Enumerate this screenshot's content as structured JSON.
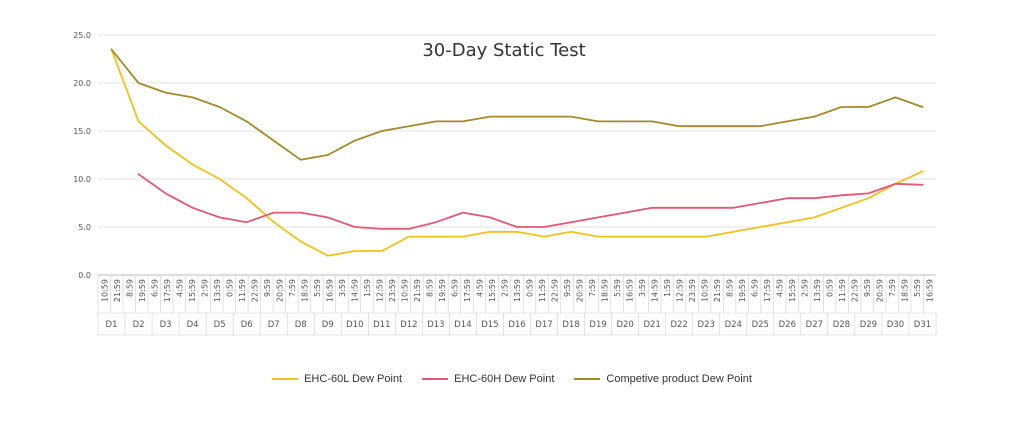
{
  "chart_data": {
    "type": "line",
    "title": "30-Day Static Test",
    "ylim": [
      0,
      25
    ],
    "yticks": [
      "0.0",
      "5.0",
      "10.0",
      "15.0",
      "20.0",
      "25.0"
    ],
    "grid": true,
    "legend_position": "bottom",
    "x": [
      "D1",
      "D2",
      "D3",
      "D4",
      "D5",
      "D6",
      "D7",
      "D8",
      "D9",
      "D10",
      "D11",
      "D12",
      "D13",
      "D14",
      "D15",
      "D16",
      "D17",
      "D18",
      "D19",
      "D20",
      "D21",
      "D22",
      "D23",
      "D24",
      "D25",
      "D26",
      "D27",
      "D28",
      "D29",
      "D30",
      "D31"
    ],
    "time_ticks": [
      "10:59",
      "21:59",
      "8:59",
      "19:59",
      "6:59",
      "17:59",
      "4:59",
      "15:59",
      "2:59",
      "13:59",
      "0:59",
      "11:59",
      "22:59",
      "9:59",
      "20:59",
      "7:59",
      "18:59",
      "5:59",
      "16:59",
      "3:59",
      "14:59",
      "1:59",
      "12:59",
      "23:59",
      "10:59",
      "21:59",
      "8:59",
      "19:59",
      "6:59",
      "17:59",
      "4:59",
      "15:59",
      "2:59",
      "13:59",
      "0:59",
      "11:59",
      "22:59",
      "9:59",
      "20:59",
      "7:59",
      "18:59",
      "5:59",
      "16:59",
      "3:59",
      "14:59",
      "1:59",
      "12:59",
      "23:59",
      "10:59",
      "21:59",
      "8:59",
      "19:59",
      "6:59",
      "17:59",
      "4:59",
      "15:59",
      "2:59",
      "13:59",
      "0:59",
      "11:59",
      "22:59",
      "9:59",
      "20:59",
      "7:59",
      "18:59",
      "5:59",
      "16:59"
    ],
    "series": [
      {
        "name": "EHC-60L Dew Point",
        "color": "#f2c11a",
        "values": [
          23.5,
          16.0,
          13.5,
          11.5,
          10.0,
          8.0,
          5.5,
          3.5,
          2.0,
          2.5,
          2.5,
          4.0,
          4.0,
          4.0,
          4.5,
          4.5,
          4.0,
          4.5,
          4.0,
          4.0,
          4.0,
          4.0,
          4.0,
          4.5,
          5.0,
          5.5,
          6.0,
          7.0,
          8.0,
          9.5,
          10.8
        ]
      },
      {
        "name": "EHC-60H Dew Point",
        "color": "#e05a78",
        "values": [
          null,
          10.5,
          8.5,
          7.0,
          6.0,
          5.5,
          6.5,
          6.5,
          6.0,
          5.0,
          4.8,
          4.8,
          5.5,
          6.5,
          6.0,
          5.0,
          5.0,
          5.5,
          6.0,
          6.5,
          7.0,
          7.0,
          7.0,
          7.0,
          7.5,
          8.0,
          8.0,
          8.3,
          8.5,
          9.5,
          9.4
        ]
      },
      {
        "name": "Competive product Dew Point",
        "color": "#a38a2a",
        "values": [
          23.5,
          20.0,
          19.0,
          18.5,
          17.5,
          16.0,
          14.0,
          12.0,
          12.5,
          14.0,
          15.0,
          15.5,
          16.0,
          16.0,
          16.5,
          16.5,
          16.5,
          16.5,
          16.0,
          16.0,
          16.0,
          15.5,
          15.5,
          15.5,
          15.5,
          16.0,
          16.5,
          17.5,
          17.5,
          18.5,
          17.5
        ]
      }
    ]
  }
}
